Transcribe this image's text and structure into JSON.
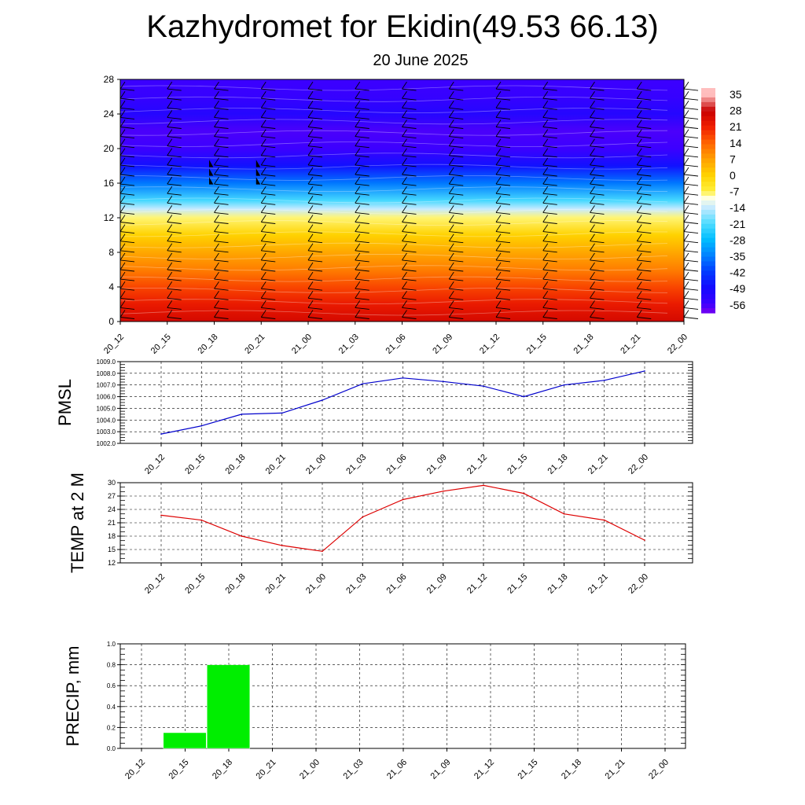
{
  "header": {
    "title": "Kazhydromet for Ekidin(49.53 66.13)",
    "subtitle": "20 June 2025"
  },
  "colors": {
    "pmsl_line": "#0000cc",
    "temp_line": "#dd0000",
    "precip_bar": "#00ee00",
    "grid": "#000000",
    "background": "#ffffff"
  },
  "chart_data": [
    {
      "id": "cross-section",
      "type": "heatmap",
      "title": "",
      "xlabel": "",
      "ylabel": "",
      "x_ticks": [
        "20_12",
        "20_15",
        "20_18",
        "20_21",
        "21_00",
        "21_03",
        "21_06",
        "21_09",
        "21_12",
        "21_15",
        "21_18",
        "21_21",
        "22_00"
      ],
      "y_ticks": [
        0,
        4,
        8,
        12,
        16,
        20,
        24,
        28
      ],
      "ylim": [
        0,
        28
      ],
      "colorbar_labels": [
        "35",
        "28",
        "21",
        "14",
        "7",
        "0",
        "-7",
        "-14",
        "-21",
        "-28",
        "-35",
        "-42",
        "-49",
        "-56"
      ],
      "temperature_by_height": [
        {
          "height": 0,
          "value": 26
        },
        {
          "height": 2,
          "value": 22
        },
        {
          "height": 4,
          "value": 17
        },
        {
          "height": 6,
          "value": 11
        },
        {
          "height": 8,
          "value": 6
        },
        {
          "height": 10,
          "value": 0
        },
        {
          "height": 12,
          "value": -8
        },
        {
          "height": 13,
          "value": -14
        },
        {
          "height": 14,
          "value": -22
        },
        {
          "height": 16,
          "value": -36
        },
        {
          "height": 18,
          "value": -48
        },
        {
          "height": 20,
          "value": -56
        },
        {
          "height": 22,
          "value": -57
        },
        {
          "height": 24,
          "value": -52
        },
        {
          "height": 26,
          "value": -55
        },
        {
          "height": 28,
          "value": -56
        }
      ],
      "wind_barbs": "present",
      "legend": "colorbar-right",
      "grid": false
    },
    {
      "id": "pmsl",
      "type": "line",
      "title": "",
      "xlabel": "",
      "ylabel": "PMSL",
      "categories": [
        "20_12",
        "20_15",
        "20_18",
        "20_21",
        "21_00",
        "21_03",
        "21_06",
        "21_09",
        "21_12",
        "21_15",
        "21_18",
        "21_21",
        "22_00"
      ],
      "y_ticks": [
        "1002.0",
        "1003.0",
        "1004.0",
        "1005.0",
        "1006.0",
        "1007.0",
        "1008.0",
        "1009.0"
      ],
      "ylim": [
        1002,
        1009
      ],
      "series": [
        {
          "values": [
            1002.8,
            1003.5,
            1004.5,
            1004.6,
            1005.7,
            1007.1,
            1007.6,
            1007.3,
            1006.9,
            1006.0,
            1007.0,
            1007.4,
            1008.2
          ]
        }
      ],
      "grid": true
    },
    {
      "id": "temp",
      "type": "line",
      "title": "",
      "xlabel": "",
      "ylabel": "TEMP at 2 M",
      "categories": [
        "20_12",
        "20_15",
        "20_18",
        "20_21",
        "21_00",
        "21_03",
        "21_06",
        "21_09",
        "21_12",
        "21_15",
        "21_18",
        "21_21",
        "22_00"
      ],
      "y_ticks": [
        "12",
        "15",
        "18",
        "21",
        "24",
        "27",
        "30"
      ],
      "ylim": [
        12,
        30
      ],
      "series": [
        {
          "values": [
            22.7,
            21.6,
            18.0,
            15.9,
            14.6,
            22.3,
            26.2,
            28.1,
            29.4,
            27.6,
            23.0,
            21.6,
            17.1
          ]
        }
      ],
      "grid": true
    },
    {
      "id": "precip",
      "type": "bar",
      "title": "",
      "xlabel": "",
      "ylabel": "PRECIP, mm",
      "categories": [
        "20_12",
        "20_15",
        "20_18",
        "20_21",
        "21_00",
        "21_03",
        "21_06",
        "21_09",
        "21_12",
        "21_15",
        "21_18",
        "21_21",
        "22_00"
      ],
      "y_ticks": [
        "0.0",
        "0.2",
        "0.4",
        "0.6",
        "0.8",
        "1.0"
      ],
      "ylim": [
        0,
        1.0
      ],
      "values": [
        0,
        0.15,
        0.8,
        0,
        0,
        0,
        0,
        0,
        0,
        0,
        0,
        0,
        0
      ],
      "grid": true
    }
  ]
}
